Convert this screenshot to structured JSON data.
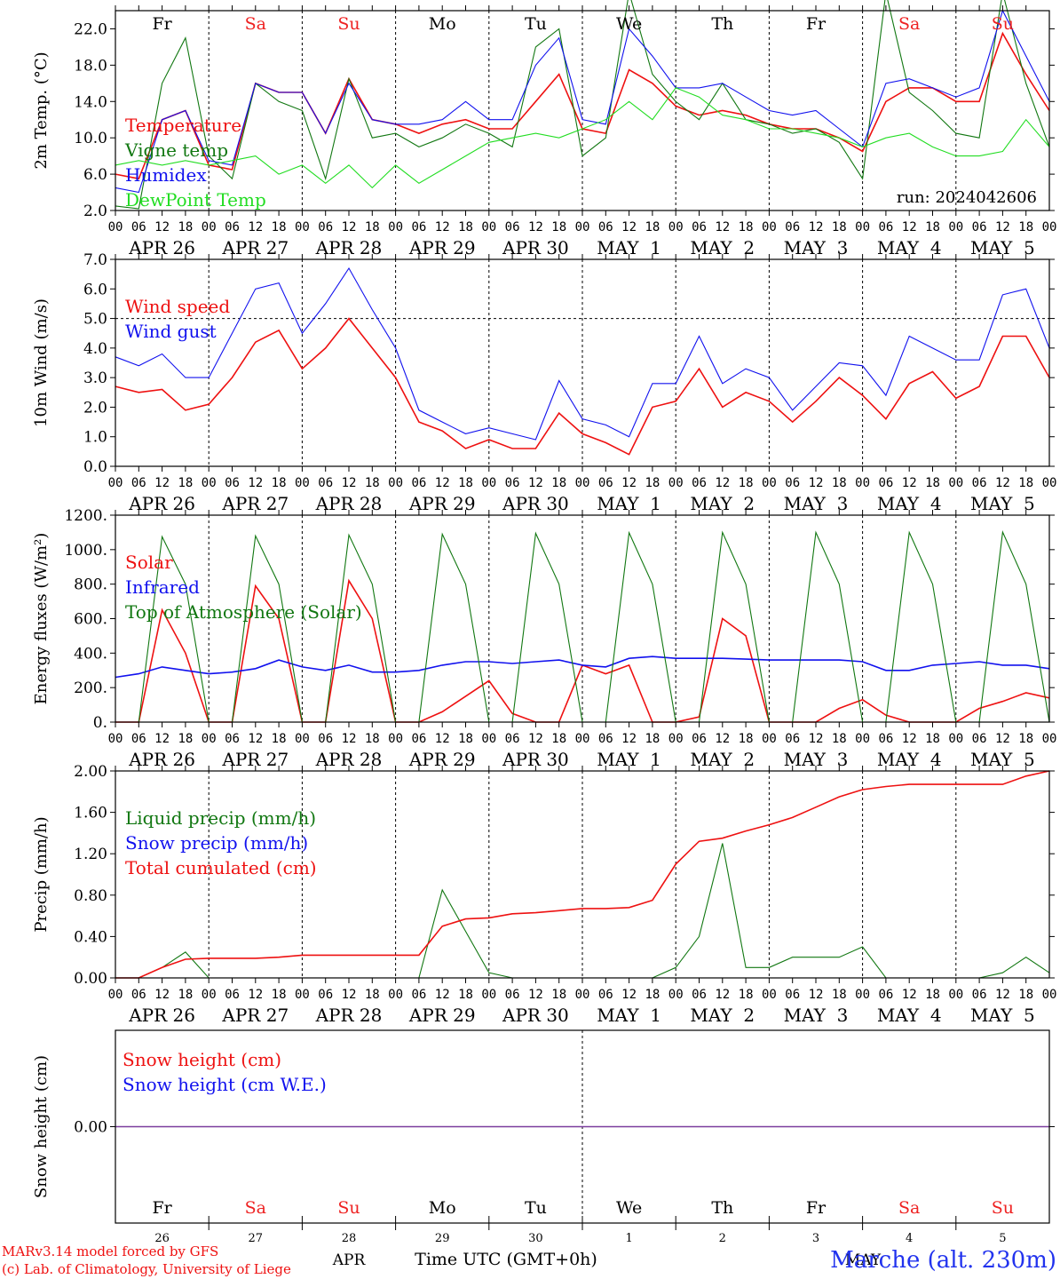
{
  "colors": {
    "red": "#ee1111",
    "green": "#117711",
    "blue": "#1111ee",
    "lightgreen": "#22dd22",
    "purple": "#7a3d9e",
    "weekend": "#ee2222",
    "axis": "#000000"
  },
  "days": {
    "weekday_labels": [
      "Fr",
      "Sa",
      "Su",
      "Mo",
      "Tu",
      "We",
      "Th",
      "Fr",
      "Sa",
      "Su"
    ],
    "weekend_flags": [
      false,
      true,
      true,
      false,
      false,
      false,
      false,
      false,
      true,
      true
    ],
    "date_labels": [
      "APR 26",
      "APR 27",
      "APR 28",
      "APR 29",
      "APR 30",
      "MAY  1",
      "MAY  2",
      "MAY  3",
      "MAY  4",
      "MAY  5"
    ],
    "day_numbers": [
      "26",
      "27",
      "28",
      "29",
      "30",
      "1",
      "2",
      "3",
      "4",
      "5"
    ],
    "hour_ticks": [
      "00",
      "06",
      "12",
      "18"
    ],
    "month_labels": [
      "APR",
      "MAY"
    ]
  },
  "footer": {
    "model_line": "MARv3.14 model forced by GFS",
    "credit_line": "(c) Lab. of Climatology, University of Liege",
    "time_axis_label": "Time UTC (GMT+0h)",
    "station": "Marche (alt. 230m)"
  },
  "chart_data": [
    {
      "type": "line",
      "ylabel": "2m Temp. (°C)",
      "ylim": [
        2,
        24
      ],
      "yticks": [
        "2.0",
        "6.0",
        "10.0",
        "14.0",
        "18.0",
        "22.0"
      ],
      "yticks_v": [
        2,
        6,
        10,
        14,
        18,
        22
      ],
      "annotation": "run: 2024042606",
      "x_hours": [
        0,
        6,
        12,
        18,
        24,
        30,
        36,
        42,
        48,
        54,
        60,
        66,
        72,
        78,
        84,
        90,
        96,
        102,
        108,
        114,
        120,
        126,
        132,
        138,
        144,
        150,
        156,
        162,
        168,
        174,
        180,
        186,
        192,
        198,
        204,
        210,
        216,
        222,
        228,
        234,
        240
      ],
      "series": [
        {
          "name": "Temperature",
          "color": "red",
          "values": [
            6,
            5.5,
            12,
            13,
            7,
            6.5,
            16,
            15,
            15,
            10.5,
            16.5,
            12,
            11.5,
            10.5,
            11.5,
            12,
            11,
            11,
            14,
            17,
            11,
            10.5,
            17.5,
            16,
            13.5,
            12.5,
            13,
            12.5,
            11.5,
            11,
            11,
            10,
            8.5,
            14,
            15.5,
            15.5,
            14,
            14,
            21.5,
            17,
            13
          ]
        },
        {
          "name": "Vigne temp",
          "color": "green",
          "values": [
            2.5,
            2.2,
            16,
            21,
            8,
            5.5,
            16,
            14,
            13,
            5.5,
            16.5,
            10,
            10.5,
            9,
            10,
            11.5,
            10.5,
            9,
            20,
            22,
            8,
            10,
            26,
            17,
            14,
            12,
            16,
            12,
            11.5,
            10.5,
            11,
            9.5,
            5.5,
            26,
            15,
            13,
            10.5,
            10,
            26,
            16,
            9
          ]
        },
        {
          "name": "Humidex",
          "color": "blue",
          "values": [
            4.5,
            4,
            12,
            13,
            7.5,
            7,
            16,
            15,
            15,
            10.5,
            16,
            12,
            11.5,
            11.5,
            12,
            14,
            12,
            12,
            18,
            21,
            12,
            11.5,
            22,
            19,
            15.5,
            15.5,
            16,
            14.5,
            13,
            12.5,
            13,
            11,
            9,
            16,
            16.5,
            15.5,
            14.5,
            15.5,
            24,
            19,
            14
          ]
        },
        {
          "name": "DewPoint Temp",
          "color": "lightgreen",
          "values": [
            7,
            7.5,
            7,
            7.5,
            7,
            7.5,
            8,
            6,
            7,
            5,
            7,
            4.5,
            7,
            5,
            6.5,
            8,
            9.5,
            10,
            10.5,
            10,
            11,
            12,
            14,
            12,
            15.5,
            14.5,
            12.5,
            12,
            11,
            11,
            10.5,
            10,
            9,
            10,
            10.5,
            9,
            8,
            8,
            8.5,
            12,
            9
          ]
        }
      ]
    },
    {
      "type": "line",
      "ylabel": "10m Wind (m/s)",
      "ylim": [
        0,
        7
      ],
      "yticks": [
        "0.0",
        "1.0",
        "2.0",
        "3.0",
        "4.0",
        "5.0",
        "6.0",
        "7.0"
      ],
      "yticks_v": [
        0,
        1,
        2,
        3,
        4,
        5,
        6,
        7
      ],
      "reference_line": 5,
      "x_hours": [
        0,
        6,
        12,
        18,
        24,
        30,
        36,
        42,
        48,
        54,
        60,
        66,
        72,
        78,
        84,
        90,
        96,
        102,
        108,
        114,
        120,
        126,
        132,
        138,
        144,
        150,
        156,
        162,
        168,
        174,
        180,
        186,
        192,
        198,
        204,
        210,
        216,
        222,
        228,
        234,
        240
      ],
      "series": [
        {
          "name": "Wind speed",
          "color": "red",
          "values": [
            2.7,
            2.5,
            2.6,
            1.9,
            2.1,
            3.0,
            4.2,
            4.6,
            3.3,
            4.0,
            5.0,
            4.0,
            3.0,
            1.5,
            1.2,
            0.6,
            0.9,
            0.6,
            0.6,
            1.8,
            1.1,
            0.8,
            0.4,
            2.0,
            2.2,
            3.3,
            2.0,
            2.5,
            2.2,
            1.5,
            2.2,
            3.0,
            2.4,
            1.6,
            2.8,
            3.2,
            2.3,
            2.7,
            4.4,
            4.4,
            3.0
          ]
        },
        {
          "name": "Wind gust",
          "color": "blue",
          "values": [
            3.7,
            3.4,
            3.8,
            3.0,
            3.0,
            4.5,
            6.0,
            6.2,
            4.5,
            5.5,
            6.7,
            5.3,
            4.0,
            1.9,
            1.5,
            1.1,
            1.3,
            1.1,
            0.9,
            2.9,
            1.6,
            1.4,
            1.0,
            2.8,
            2.8,
            4.4,
            2.8,
            3.3,
            3.0,
            1.9,
            2.7,
            3.5,
            3.4,
            2.4,
            4.4,
            4.0,
            3.6,
            3.6,
            5.8,
            6.0,
            4.0
          ]
        }
      ]
    },
    {
      "type": "line",
      "ylabel": "Energy fluxes (W/m²)",
      "ylim": [
        0,
        1200
      ],
      "yticks": [
        "0.",
        "200.",
        "400.",
        "600.",
        "800.",
        "1000.",
        "1200."
      ],
      "yticks_v": [
        0,
        200,
        400,
        600,
        800,
        1000,
        1200
      ],
      "x_hours": [
        0,
        6,
        12,
        18,
        24,
        30,
        36,
        42,
        48,
        54,
        60,
        66,
        72,
        78,
        84,
        90,
        96,
        102,
        108,
        114,
        120,
        126,
        132,
        138,
        144,
        150,
        156,
        162,
        168,
        174,
        180,
        186,
        192,
        198,
        204,
        210,
        216,
        222,
        228,
        234,
        240
      ],
      "series": [
        {
          "name": "Solar",
          "color": "red",
          "values": [
            0,
            0,
            650,
            400,
            0,
            0,
            790,
            600,
            0,
            0,
            820,
            600,
            0,
            0,
            60,
            150,
            240,
            50,
            0,
            0,
            330,
            280,
            330,
            0,
            0,
            30,
            600,
            500,
            0,
            0,
            0,
            80,
            130,
            40,
            0,
            0,
            0,
            80,
            120,
            170,
            140
          ]
        },
        {
          "name": "Infrared",
          "color": "blue",
          "values": [
            260,
            280,
            320,
            300,
            280,
            290,
            310,
            360,
            320,
            300,
            330,
            290,
            290,
            300,
            330,
            350,
            350,
            340,
            350,
            360,
            330,
            320,
            370,
            380,
            370,
            370,
            370,
            365,
            360,
            360,
            360,
            360,
            350,
            300,
            300,
            330,
            340,
            350,
            330,
            330,
            310
          ]
        },
        {
          "name": "Top of Atmosphere (Solar)",
          "color": "green",
          "values": [
            0,
            0,
            1075,
            800,
            0,
            0,
            1080,
            800,
            0,
            0,
            1085,
            800,
            0,
            0,
            1090,
            800,
            0,
            0,
            1095,
            800,
            0,
            0,
            1098,
            800,
            0,
            0,
            1100,
            800,
            0,
            0,
            1100,
            800,
            0,
            0,
            1100,
            800,
            0,
            0,
            1102,
            800,
            0
          ]
        }
      ]
    },
    {
      "type": "line",
      "ylabel": "Precip (mm/h)",
      "ylim": [
        0,
        2
      ],
      "yticks": [
        "0.00",
        "0.40",
        "0.80",
        "1.20",
        "1.60",
        "2.00"
      ],
      "yticks_v": [
        0,
        0.4,
        0.8,
        1.2,
        1.6,
        2.0
      ],
      "x_hours": [
        0,
        6,
        12,
        18,
        24,
        30,
        36,
        42,
        48,
        54,
        60,
        66,
        72,
        78,
        84,
        90,
        96,
        102,
        108,
        114,
        120,
        126,
        132,
        138,
        144,
        150,
        156,
        162,
        168,
        174,
        180,
        186,
        192,
        198,
        204,
        210,
        216,
        222,
        228,
        234,
        240
      ],
      "series": [
        {
          "name": "Liquid precip (mm/h)",
          "color": "green",
          "values": [
            0,
            0,
            0.1,
            0.25,
            0,
            0,
            0,
            0,
            0,
            0,
            0,
            0,
            0,
            0,
            0.85,
            0.45,
            0.05,
            0,
            0,
            0,
            0,
            0,
            0,
            0,
            0.1,
            0.4,
            1.3,
            0.1,
            0.1,
            0.2,
            0.2,
            0.2,
            0.3,
            0,
            0,
            0,
            0,
            0,
            0.05,
            0.2,
            0.05
          ]
        },
        {
          "name": "Snow precip (mm/h)",
          "color": "blue",
          "values": [
            0,
            0,
            0,
            0,
            0,
            0,
            0,
            0,
            0,
            0,
            0,
            0,
            0,
            0,
            0,
            0,
            0,
            0,
            0,
            0,
            0,
            0,
            0,
            0,
            0,
            0,
            0,
            0,
            0,
            0,
            0,
            0,
            0,
            0,
            0,
            0,
            0,
            0,
            0,
            0,
            0
          ]
        },
        {
          "name": "Total cumulated (cm)",
          "color": "red",
          "values": [
            0,
            0,
            0.1,
            0.18,
            0.19,
            0.19,
            0.19,
            0.2,
            0.22,
            0.22,
            0.22,
            0.22,
            0.22,
            0.22,
            0.5,
            0.57,
            0.58,
            0.62,
            0.63,
            0.65,
            0.67,
            0.67,
            0.68,
            0.75,
            1.1,
            1.32,
            1.35,
            1.42,
            1.48,
            1.55,
            1.65,
            1.75,
            1.82,
            1.85,
            1.87,
            1.87,
            1.87,
            1.87,
            1.87,
            1.95,
            2.0
          ]
        }
      ]
    },
    {
      "type": "line",
      "ylabel": "Snow height (cm)",
      "ylim": [
        -1,
        1
      ],
      "yticks": [
        "0.00"
      ],
      "yticks_v": [
        0
      ],
      "x_hours": [
        0,
        240
      ],
      "series": [
        {
          "name": "Snow height (cm)",
          "color": "red",
          "values": [
            0,
            0
          ]
        },
        {
          "name": "Snow height (cm W.E.)",
          "color": "blue",
          "values": [
            0,
            0
          ]
        }
      ]
    }
  ]
}
